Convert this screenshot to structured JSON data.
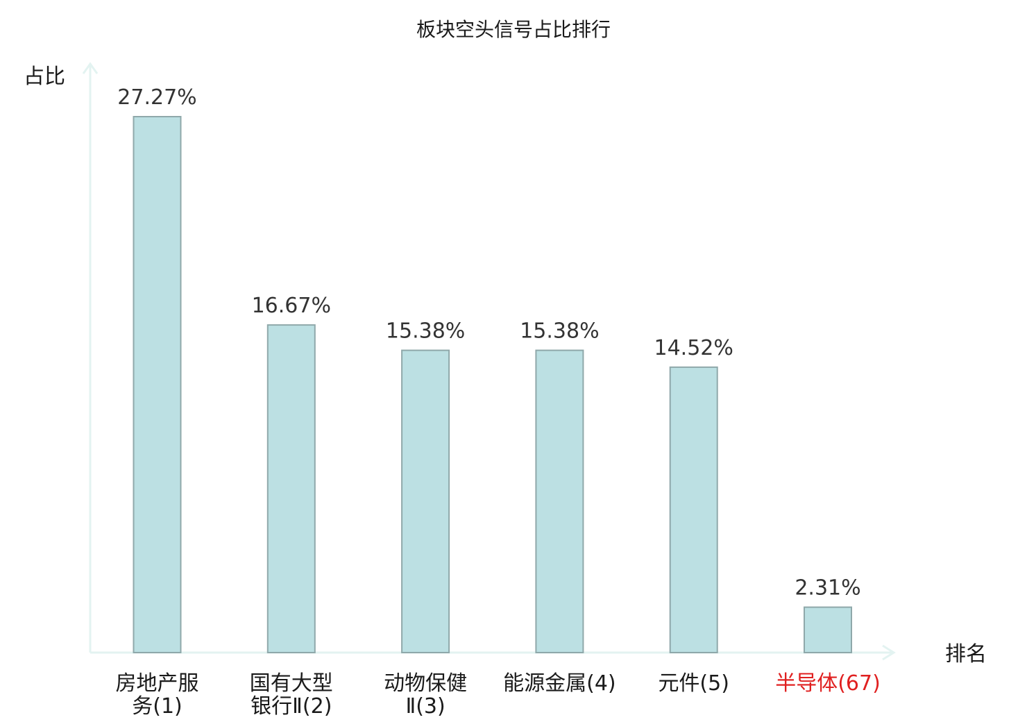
{
  "chart_data": {
    "type": "bar",
    "title": "板块空头信号占比排行",
    "xlabel": "排名",
    "ylabel": "占比",
    "categories": [
      {
        "lines": [
          "房地产服",
          "务(1)"
        ],
        "highlight": false
      },
      {
        "lines": [
          "国有大型",
          "银行Ⅱ(2)"
        ],
        "highlight": false
      },
      {
        "lines": [
          "动物保健",
          "Ⅱ(3)"
        ],
        "highlight": false
      },
      {
        "lines": [
          "能源金属(4)"
        ],
        "highlight": false
      },
      {
        "lines": [
          "元件(5)"
        ],
        "highlight": false
      },
      {
        "lines": [
          "半导体(67)"
        ],
        "highlight": true
      }
    ],
    "values": [
      27.27,
      16.67,
      15.38,
      15.38,
      14.52,
      2.31
    ],
    "value_labels": [
      "27.27%",
      "16.67%",
      "15.38%",
      "15.38%",
      "14.52%",
      "2.31%"
    ],
    "unit": "%",
    "ylim": [
      0,
      27.27
    ],
    "grid": false,
    "legend": "none",
    "colors": {
      "bar_fill": "#bce0e3",
      "bar_stroke": "#8fa8aa",
      "axis": "#e3f3f1",
      "highlight_text": "#e02020",
      "text": "#1a1a1a",
      "value_text": "#333333"
    }
  }
}
